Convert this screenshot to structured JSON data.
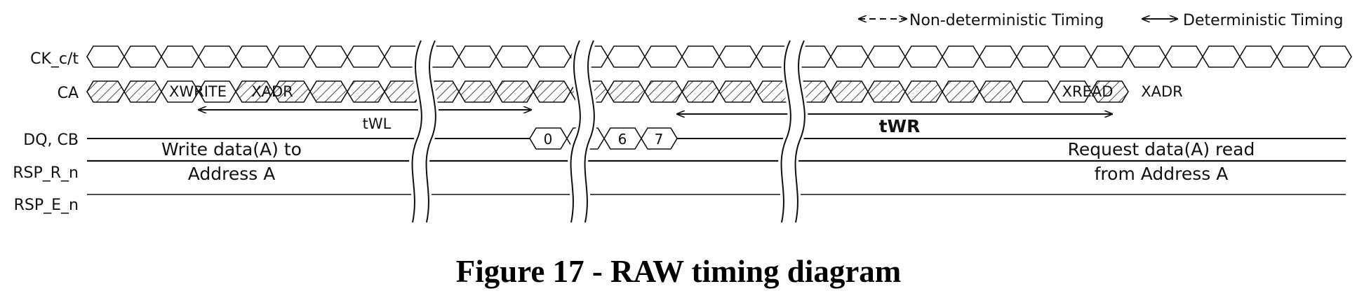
{
  "legend": {
    "nondeterministic": "Non-deterministic Timing",
    "deterministic": "Deterministic Timing"
  },
  "signals": [
    "CK_c/t",
    "CA",
    "DQ, CB",
    "RSP_R_n",
    "RSP_E_n"
  ],
  "ca_commands": {
    "xwrite": "XWRITE",
    "xadr_write": "XADR",
    "xread": "XREAD",
    "xadr_read": "XADR"
  },
  "dq_beats": {
    "first": "0",
    "sixth": "6",
    "seventh": "7"
  },
  "timing": {
    "twl": "tWL",
    "twr": "tWR"
  },
  "notes": {
    "write_line1": "Write data(A) to",
    "write_line2": "Address A",
    "read_line1": "Request data(A) read",
    "read_line2": "from Address A"
  },
  "caption": "Figure 17 - RAW timing diagram"
}
